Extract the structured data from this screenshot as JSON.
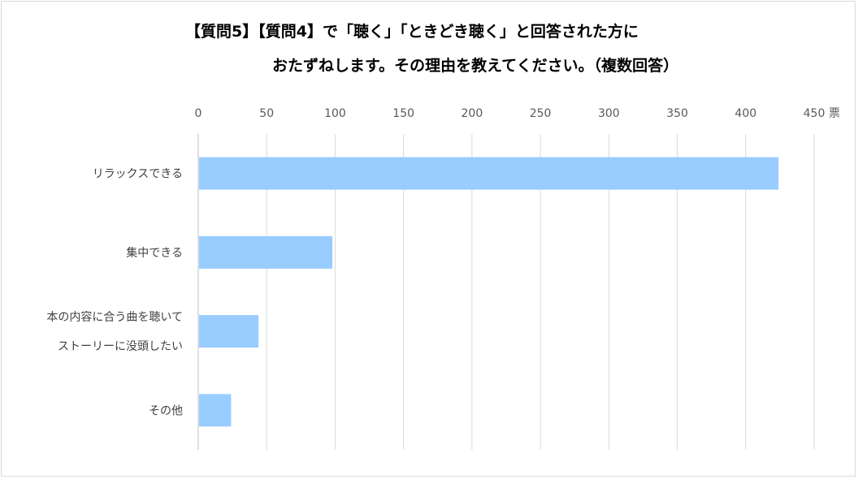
{
  "title_line1": "【質問5】【質問4】で「聴く」「ときどき聴く」と回答された方に",
  "title_line2": "おたずねします。その理由を教えてください。（複数回答）",
  "chart_data": {
    "type": "bar",
    "orientation": "horizontal",
    "categories": [
      [
        "リラックスできる"
      ],
      [
        "集中できる"
      ],
      [
        "本の内容に合う曲を聴いて",
        "ストーリーに没頭したい"
      ],
      [
        "その他"
      ]
    ],
    "values": [
      424,
      98,
      44,
      24
    ],
    "xlim": [
      0,
      450
    ],
    "xticks": [
      0,
      50,
      100,
      150,
      200,
      250,
      300,
      350,
      400,
      450
    ],
    "unit": "票",
    "grid": true,
    "bar_color": "#99ccff",
    "grid_color": "#d9d9d9",
    "axis_color": "#bfbfbf"
  }
}
